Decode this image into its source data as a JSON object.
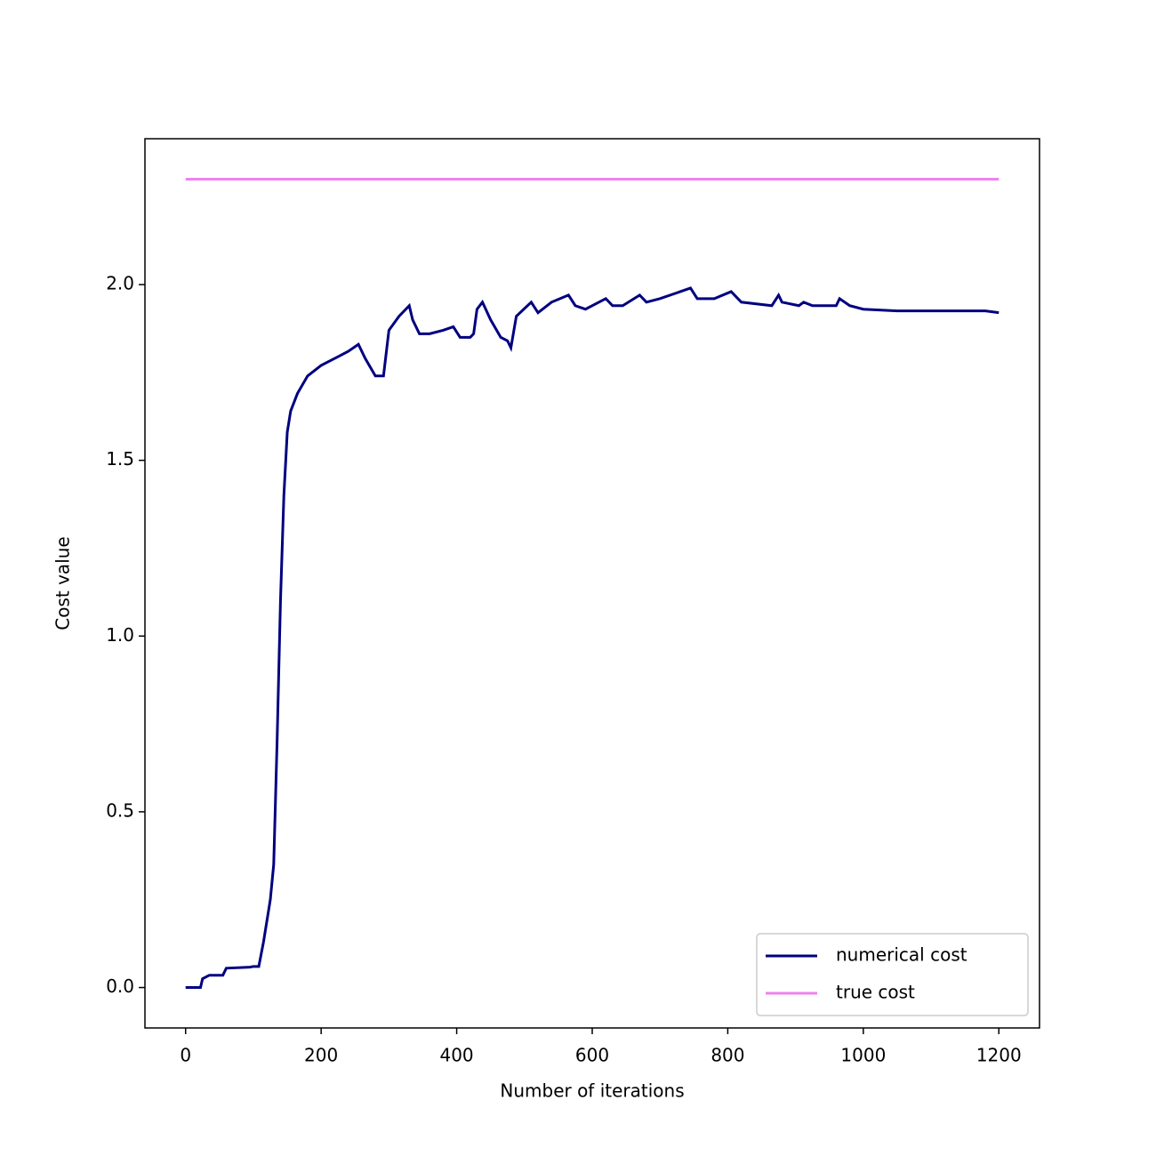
{
  "chart_data": {
    "type": "line",
    "xlabel": "Number of iterations",
    "ylabel": "Cost value",
    "xlim": [
      -60,
      1260
    ],
    "ylim": [
      -0.115,
      2.415
    ],
    "xticks": [
      0,
      200,
      400,
      600,
      800,
      1000,
      1200
    ],
    "yticks": [
      {
        "value": 0,
        "label": "0.0"
      },
      0.5,
      {
        "value": 1,
        "label": "1.0"
      },
      1.5,
      {
        "value": 2,
        "label": "2.0"
      }
    ],
    "legend": "lower right",
    "series": [
      {
        "name": "numerical cost",
        "color": "#000080",
        "x": [
          0,
          22,
          25,
          35,
          55,
          60,
          95,
          100,
          108,
          115,
          125,
          130,
          135,
          140,
          145,
          150,
          155,
          165,
          180,
          200,
          220,
          240,
          255,
          265,
          280,
          292,
          300,
          315,
          330,
          335,
          345,
          360,
          380,
          395,
          405,
          420,
          425,
          430,
          438,
          450,
          465,
          475,
          480,
          488,
          510,
          520,
          540,
          565,
          575,
          590,
          620,
          630,
          645,
          670,
          680,
          700,
          745,
          755,
          780,
          805,
          820,
          865,
          875,
          880,
          905,
          912,
          925,
          960,
          965,
          980,
          1000,
          1050,
          1180,
          1200
        ],
        "values": [
          0,
          0,
          0.025,
          0.035,
          0.035,
          0.055,
          0.058,
          0.06,
          0.06,
          0.13,
          0.25,
          0.35,
          0.7,
          1.1,
          1.4,
          1.58,
          1.64,
          1.69,
          1.74,
          1.77,
          1.79,
          1.81,
          1.83,
          1.79,
          1.74,
          1.74,
          1.87,
          1.91,
          1.94,
          1.9,
          1.86,
          1.86,
          1.87,
          1.88,
          1.85,
          1.85,
          1.86,
          1.93,
          1.95,
          1.9,
          1.85,
          1.84,
          1.82,
          1.91,
          1.95,
          1.92,
          1.95,
          1.97,
          1.94,
          1.93,
          1.96,
          1.94,
          1.94,
          1.97,
          1.95,
          1.96,
          1.99,
          1.96,
          1.96,
          1.98,
          1.95,
          1.94,
          1.97,
          1.95,
          1.94,
          1.95,
          1.94,
          1.94,
          1.96,
          1.94,
          1.93,
          1.925,
          1.925,
          1.92
        ]
      },
      {
        "name": "true cost",
        "color": "#ee82ee",
        "x": [
          0,
          1200
        ],
        "values": [
          2.3,
          2.3
        ]
      }
    ]
  }
}
